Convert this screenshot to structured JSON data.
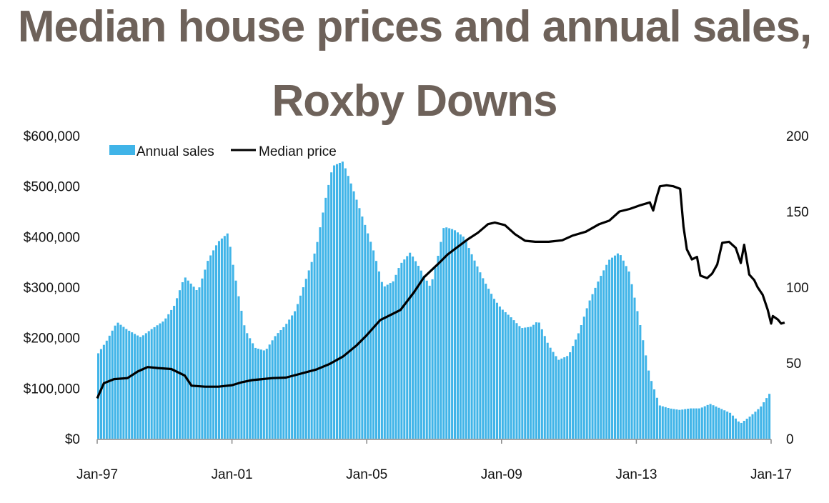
{
  "chart_data": {
    "type": "bar+line",
    "title_lines": [
      "Median house prices and annual sales,",
      "Roxby Downs"
    ],
    "title_color": "#6e625a",
    "legend_position": "top-left",
    "legend": [
      {
        "label": "Annual sales",
        "color": "#40b4e8",
        "kind": "bar"
      },
      {
        "label": "Median price",
        "color": "#000000",
        "kind": "line"
      }
    ],
    "x_ticks": [
      "Jan-97",
      "Jan-01",
      "Jan-05",
      "Jan-09",
      "Jan-13",
      "Jan-17"
    ],
    "x_range": [
      1997.0,
      2017.0
    ],
    "y_left_ticks": [
      "$600,000",
      "$500,000",
      "$400,000",
      "$300,000",
      "$200,000",
      "$100,000",
      "$0"
    ],
    "y_left_range": [
      0,
      600000
    ],
    "y_right_ticks": [
      "200",
      "150",
      "100",
      "50",
      "0"
    ],
    "y_right_range": [
      0,
      200
    ],
    "grid": false,
    "series": [
      {
        "name": "Annual sales",
        "axis": "right",
        "color": "#40b4e8",
        "points": [
          [
            1997.0,
            55
          ],
          [
            1997.3,
            65
          ],
          [
            1997.6,
            77
          ],
          [
            1997.9,
            72
          ],
          [
            1998.3,
            67
          ],
          [
            1998.6,
            72
          ],
          [
            1999.0,
            78
          ],
          [
            1999.3,
            88
          ],
          [
            1999.6,
            107
          ],
          [
            1999.85,
            101
          ],
          [
            2000.0,
            97
          ],
          [
            2000.3,
            118
          ],
          [
            2000.6,
            130
          ],
          [
            2000.9,
            136
          ],
          [
            2001.0,
            120
          ],
          [
            2001.2,
            95
          ],
          [
            2001.4,
            72
          ],
          [
            2001.7,
            60
          ],
          [
            2002.0,
            58
          ],
          [
            2002.3,
            68
          ],
          [
            2002.6,
            75
          ],
          [
            2002.9,
            85
          ],
          [
            2003.2,
            105
          ],
          [
            2003.5,
            125
          ],
          [
            2003.8,
            160
          ],
          [
            2004.0,
            180
          ],
          [
            2004.3,
            183
          ],
          [
            2004.6,
            165
          ],
          [
            2004.9,
            145
          ],
          [
            2005.2,
            125
          ],
          [
            2005.5,
            100
          ],
          [
            2005.8,
            104
          ],
          [
            2006.0,
            115
          ],
          [
            2006.3,
            123
          ],
          [
            2006.6,
            112
          ],
          [
            2006.9,
            100
          ],
          [
            2007.1,
            118
          ],
          [
            2007.3,
            140
          ],
          [
            2007.6,
            138
          ],
          [
            2007.9,
            133
          ],
          [
            2008.2,
            118
          ],
          [
            2008.5,
            104
          ],
          [
            2008.8,
            92
          ],
          [
            2009.0,
            86
          ],
          [
            2009.3,
            80
          ],
          [
            2009.6,
            73
          ],
          [
            2009.9,
            74
          ],
          [
            2010.1,
            78
          ],
          [
            2010.4,
            62
          ],
          [
            2010.7,
            52
          ],
          [
            2011.0,
            55
          ],
          [
            2011.3,
            70
          ],
          [
            2011.6,
            90
          ],
          [
            2011.9,
            105
          ],
          [
            2012.2,
            118
          ],
          [
            2012.5,
            123
          ],
          [
            2012.8,
            110
          ],
          [
            2013.1,
            78
          ],
          [
            2013.4,
            42
          ],
          [
            2013.7,
            22
          ],
          [
            2014.0,
            20
          ],
          [
            2014.3,
            19
          ],
          [
            2014.6,
            20
          ],
          [
            2014.9,
            20
          ],
          [
            2015.2,
            23
          ],
          [
            2015.5,
            20
          ],
          [
            2015.8,
            17
          ],
          [
            2016.1,
            10
          ],
          [
            2016.4,
            15
          ],
          [
            2016.7,
            21
          ],
          [
            2017.0,
            31
          ]
        ]
      },
      {
        "name": "Median price",
        "axis": "left",
        "color": "#000000",
        "points": [
          [
            1997.0,
            80000
          ],
          [
            1997.2,
            110000
          ],
          [
            1997.5,
            118000
          ],
          [
            1997.9,
            120000
          ],
          [
            1998.2,
            133000
          ],
          [
            1998.5,
            142000
          ],
          [
            1998.8,
            140000
          ],
          [
            1999.2,
            138000
          ],
          [
            1999.6,
            125000
          ],
          [
            1999.8,
            105000
          ],
          [
            2000.2,
            103000
          ],
          [
            2000.6,
            103000
          ],
          [
            2001.0,
            106000
          ],
          [
            2001.3,
            112000
          ],
          [
            2001.6,
            116000
          ],
          [
            2001.9,
            118000
          ],
          [
            2002.2,
            120000
          ],
          [
            2002.6,
            121000
          ],
          [
            2003.0,
            128000
          ],
          [
            2003.5,
            137000
          ],
          [
            2003.9,
            148000
          ],
          [
            2004.3,
            163000
          ],
          [
            2004.7,
            185000
          ],
          [
            2005.0,
            205000
          ],
          [
            2005.4,
            235000
          ],
          [
            2005.7,
            245000
          ],
          [
            2006.0,
            255000
          ],
          [
            2006.4,
            290000
          ],
          [
            2006.7,
            320000
          ],
          [
            2007.1,
            345000
          ],
          [
            2007.4,
            365000
          ],
          [
            2007.7,
            380000
          ],
          [
            2008.0,
            395000
          ],
          [
            2008.3,
            408000
          ],
          [
            2008.6,
            425000
          ],
          [
            2008.8,
            428000
          ],
          [
            2009.1,
            423000
          ],
          [
            2009.4,
            405000
          ],
          [
            2009.7,
            392000
          ],
          [
            2010.0,
            390000
          ],
          [
            2010.4,
            390000
          ],
          [
            2010.8,
            393000
          ],
          [
            2011.1,
            402000
          ],
          [
            2011.5,
            410000
          ],
          [
            2011.9,
            425000
          ],
          [
            2012.2,
            432000
          ],
          [
            2012.5,
            450000
          ],
          [
            2012.8,
            455000
          ],
          [
            2013.1,
            462000
          ],
          [
            2013.4,
            468000
          ],
          [
            2013.5,
            452000
          ],
          [
            2013.6,
            478000
          ],
          [
            2013.7,
            500000
          ],
          [
            2013.9,
            502000
          ],
          [
            2014.1,
            500000
          ],
          [
            2014.3,
            495000
          ],
          [
            2014.4,
            420000
          ],
          [
            2014.5,
            375000
          ],
          [
            2014.65,
            355000
          ],
          [
            2014.8,
            360000
          ],
          [
            2014.9,
            323000
          ],
          [
            2015.1,
            318000
          ],
          [
            2015.25,
            327000
          ],
          [
            2015.4,
            345000
          ],
          [
            2015.55,
            388000
          ],
          [
            2015.75,
            390000
          ],
          [
            2015.95,
            378000
          ],
          [
            2016.1,
            348000
          ],
          [
            2016.2,
            384000
          ],
          [
            2016.35,
            325000
          ],
          [
            2016.5,
            314000
          ],
          [
            2016.6,
            300000
          ],
          [
            2016.75,
            285000
          ],
          [
            2016.9,
            255000
          ],
          [
            2017.0,
            228000
          ],
          [
            2017.05,
            243000
          ],
          [
            2017.2,
            236000
          ],
          [
            2017.3,
            228000
          ],
          [
            2017.4,
            230000
          ]
        ]
      }
    ]
  }
}
